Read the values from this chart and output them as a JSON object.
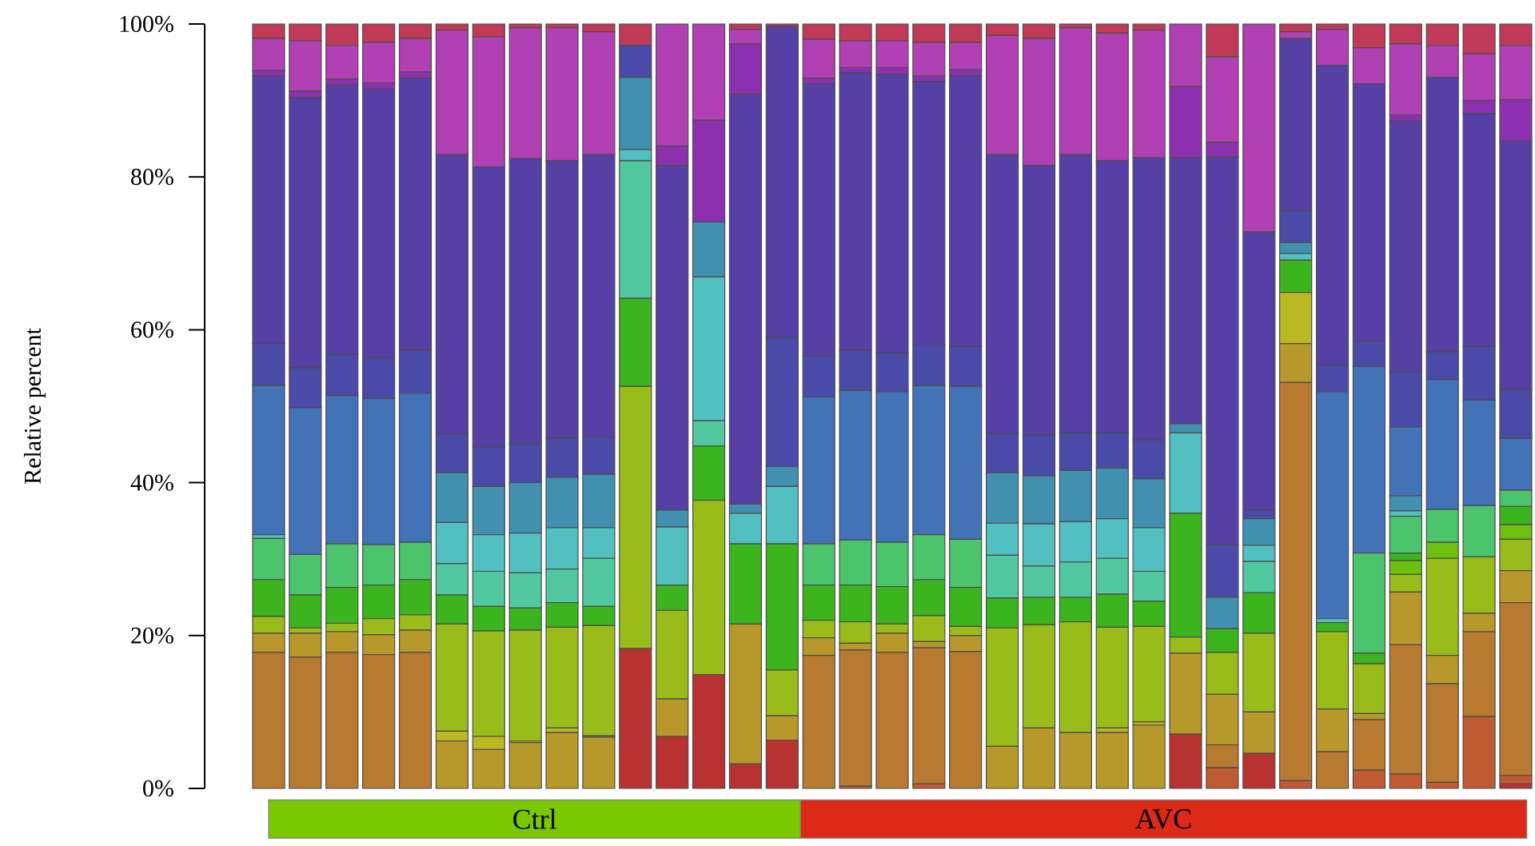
{
  "chart_data": {
    "type": "bar",
    "stacked": true,
    "ylabel": "Relative percent",
    "ylim": [
      0,
      100
    ],
    "yticks": [
      {
        "value": 0,
        "label": "0%"
      },
      {
        "value": 20,
        "label": "20%"
      },
      {
        "value": 40,
        "label": "40%"
      },
      {
        "value": 60,
        "label": "60%"
      },
      {
        "value": 80,
        "label": "80%"
      },
      {
        "value": 100,
        "label": "100%"
      }
    ],
    "annotations": [
      "Ctrl",
      "AVC"
    ],
    "categories": [
      null,
      null,
      null,
      null,
      null,
      null,
      null,
      null,
      null,
      null,
      null,
      null,
      null,
      null,
      null,
      null,
      null,
      null,
      null,
      null,
      null,
      null,
      null,
      null,
      null,
      null,
      null,
      null,
      null,
      null,
      null,
      null,
      null,
      null,
      null
    ],
    "series": [
      {
        "color": "#b83232",
        "values": [
          0,
          0,
          0,
          0,
          0,
          0,
          0,
          0,
          0,
          0,
          18.3,
          6.8,
          14.9,
          3.2,
          6.3,
          0,
          0,
          0,
          0,
          0,
          0,
          0,
          0,
          0,
          0,
          7.1,
          0,
          4.6,
          0,
          0,
          0,
          0,
          0,
          0,
          0.6
        ]
      },
      {
        "color": "#c05a32",
        "values": [
          0,
          0,
          0,
          0,
          0,
          0,
          0,
          0,
          0,
          0,
          0,
          0,
          0,
          0,
          0,
          0,
          0.3,
          0,
          0.6,
          0,
          0,
          0,
          0,
          0,
          0,
          0,
          2.7,
          0,
          1.0,
          0,
          2.4,
          1.9,
          0.8,
          9.4,
          1.1
        ]
      },
      {
        "color": "#b87a30",
        "values": [
          17.8,
          17.2,
          17.8,
          17.5,
          17.8,
          0,
          0,
          0,
          0,
          0,
          0,
          0,
          0,
          0,
          0,
          17.4,
          17.8,
          17.8,
          17.8,
          17.9,
          0,
          0,
          0,
          0,
          0,
          0,
          3.0,
          0,
          52.1,
          4.8,
          6.6,
          16.9,
          12.9,
          11.1,
          22.6
        ]
      },
      {
        "color": "#b8982a",
        "values": [
          2.5,
          3.1,
          2.7,
          2.6,
          2.9,
          6.2,
          5.1,
          6.0,
          7.3,
          6.7,
          0,
          4.9,
          0,
          18.3,
          3.2,
          2.3,
          0.9,
          2.5,
          0.8,
          2.1,
          5.5,
          7.9,
          7.3,
          7.3,
          8.3,
          10.6,
          6.6,
          5.4,
          5.1,
          5.6,
          0.8,
          6.9,
          3.7,
          2.4,
          4.2
        ]
      },
      {
        "color": "#bcb824",
        "values": [
          0,
          0,
          0,
          0,
          0,
          1.3,
          1.7,
          0.2,
          0.6,
          0.2,
          0,
          0,
          0,
          0,
          0,
          0,
          0,
          0,
          0,
          0,
          0,
          0,
          0,
          0.6,
          0.4,
          0,
          0,
          0,
          6.7,
          0,
          0,
          0,
          0,
          0,
          0
        ]
      },
      {
        "color": "#9abc1a",
        "values": [
          2.2,
          0.7,
          1.1,
          2.1,
          2.0,
          14.0,
          13.8,
          14.5,
          13.2,
          14.4,
          34.3,
          11.6,
          22.8,
          0,
          6.0,
          2.3,
          2.8,
          1.2,
          3.4,
          1.2,
          15.5,
          13.5,
          14.5,
          13.2,
          12.5,
          2.1,
          5.5,
          10.3,
          0,
          10.1,
          6.5,
          2.3,
          12.7,
          7.4,
          4.1
        ]
      },
      {
        "color": "#6cc010",
        "values": [
          0,
          0,
          0,
          0,
          0,
          0,
          0,
          0,
          0,
          0,
          0,
          0,
          0,
          0,
          0,
          0,
          0,
          0,
          0,
          0,
          0,
          0,
          0,
          0,
          0,
          0,
          0,
          0,
          0,
          0,
          0,
          1.8,
          2.1,
          0,
          1.9
        ]
      },
      {
        "color": "#3cb41e",
        "values": [
          4.8,
          4.3,
          4.7,
          4.4,
          4.6,
          3.8,
          3.2,
          2.9,
          3.2,
          2.5,
          11.5,
          3.3,
          7.1,
          10.5,
          16.5,
          4.6,
          4.8,
          4.9,
          4.7,
          5.1,
          3.9,
          3.6,
          3.2,
          4.3,
          3.3,
          16.2,
          3.1,
          5.3,
          4.2,
          1.2,
          1.4,
          1.0,
          0,
          0,
          2.4
        ]
      },
      {
        "color": "#4cc46c",
        "values": [
          5.4,
          5.3,
          5.7,
          5.3,
          4.9,
          0,
          0,
          0,
          0,
          0,
          0,
          0,
          0,
          0,
          0,
          5.4,
          5.9,
          5.8,
          5.9,
          6.3,
          0,
          0,
          0,
          0,
          0,
          0,
          0,
          0,
          0,
          0,
          13.1,
          4.8,
          4.3,
          6.7,
          2.1
        ]
      },
      {
        "color": "#52c8a0",
        "values": [
          0,
          0,
          0,
          0,
          0,
          4.1,
          4.6,
          4.6,
          4.4,
          6.3,
          18.0,
          0,
          3.3,
          0,
          0,
          0,
          0,
          0,
          0,
          0,
          5.6,
          4.1,
          4.6,
          4.7,
          3.9,
          0,
          0,
          4.1,
          0,
          0,
          0,
          0,
          0,
          0,
          0
        ]
      },
      {
        "color": "#52c0c0",
        "values": [
          0.5,
          0,
          0,
          0,
          0,
          5.4,
          4.8,
          5.2,
          5.4,
          4.0,
          1.5,
          7.6,
          18.8,
          4.0,
          7.5,
          0,
          0,
          0,
          0,
          0,
          4.2,
          5.5,
          5.3,
          5.2,
          5.7,
          10.5,
          0,
          2.1,
          0.9,
          0.5,
          0,
          0.7,
          0,
          0,
          0
        ]
      },
      {
        "color": "#4290b0",
        "values": [
          0,
          0,
          0,
          0,
          0,
          6.5,
          6.3,
          6.6,
          6.6,
          7.0,
          9.4,
          2.2,
          7.2,
          1.2,
          2.6,
          0,
          0,
          0,
          0,
          0,
          6.6,
          6.3,
          6.7,
          6.6,
          6.4,
          1.2,
          4.1,
          3.5,
          1.4,
          0,
          0,
          2.0,
          0,
          0,
          0
        ]
      },
      {
        "color": "#4272b8",
        "values": [
          19.5,
          19.2,
          19.4,
          19.1,
          19.5,
          0,
          0,
          0,
          0,
          0,
          0,
          0,
          0,
          0,
          0,
          19.2,
          19.6,
          19.7,
          19.5,
          20.0,
          0,
          0,
          0,
          0,
          0,
          0,
          0,
          0,
          0,
          29.7,
          24.4,
          9.0,
          17.0,
          13.8,
          6.8
        ]
      },
      {
        "color": "#4a4aa8",
        "values": [
          5.5,
          5.2,
          5.4,
          5.3,
          5.6,
          5.1,
          5.2,
          5.1,
          5.1,
          4.9,
          4.2,
          0,
          0,
          0,
          16.9,
          5.4,
          5.2,
          5.1,
          5.3,
          5.2,
          5.1,
          5.3,
          4.9,
          4.6,
          5.1,
          0,
          6.9,
          1.1,
          4.2,
          3.5,
          3.3,
          7.2,
          3.6,
          7.0,
          6.4
        ]
      },
      {
        "color": "#5640a6",
        "values": [
          35.0,
          35.4,
          35.2,
          35.2,
          35.6,
          36.5,
          36.6,
          37.3,
          36.3,
          36.9,
          0,
          45.1,
          0,
          53.6,
          40.7,
          35.6,
          36.3,
          36.4,
          34.5,
          35.4,
          36.5,
          35.3,
          36.4,
          35.6,
          36.9,
          34.8,
          50.7,
          36.4,
          22.5,
          39.2,
          33.7,
          32.8,
          35.9,
          30.5,
          32.5
        ]
      },
      {
        "color": "#8c30b0",
        "values": [
          0.7,
          0.8,
          0.8,
          0.8,
          0.8,
          0,
          0,
          0,
          0,
          0,
          0,
          2.5,
          13.3,
          6.6,
          0,
          0.7,
          0.7,
          0.9,
          0.7,
          0.8,
          0,
          0,
          0,
          0,
          0,
          9.3,
          1.9,
          0,
          0,
          0,
          0,
          0.8,
          0,
          1.7,
          5.4
        ]
      },
      {
        "color": "#b040b4",
        "values": [
          4.2,
          6.6,
          4.4,
          5.3,
          4.4,
          16.3,
          17.0,
          17.1,
          17.4,
          16.1,
          0,
          16.0,
          12.6,
          1.9,
          0,
          5.1,
          3.5,
          3.5,
          4.4,
          3.6,
          15.6,
          16.6,
          16.6,
          16.7,
          16.7,
          8.2,
          11.2,
          27.2,
          0.9,
          4.7,
          4.7,
          9.3,
          4.2,
          6.1,
          7.1
        ]
      },
      {
        "color": "#c03a58",
        "values": [
          1.9,
          2.2,
          2.8,
          2.4,
          1.9,
          0.8,
          1.7,
          0.5,
          0.5,
          1.0,
          2.8,
          0,
          0,
          0.7,
          0.3,
          2.0,
          2.2,
          2.2,
          2.4,
          2.4,
          1.5,
          1.9,
          0.5,
          1.2,
          0.8,
          0,
          4.3,
          0,
          1.0,
          0.7,
          3.1,
          2.6,
          2.8,
          3.9,
          2.8
        ]
      }
    ]
  }
}
